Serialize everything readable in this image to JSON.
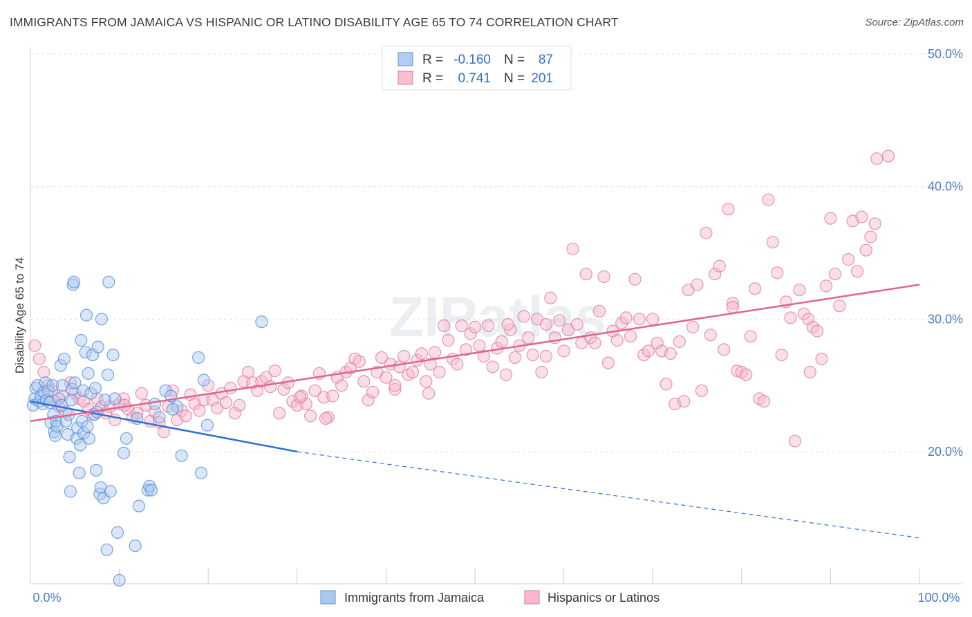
{
  "title": "IMMIGRANTS FROM JAMAICA VS HISPANIC OR LATINO DISABILITY AGE 65 TO 74 CORRELATION CHART",
  "source": "Source: ZipAtlas.com",
  "legend": {
    "rows": [
      {
        "r_label": "R =",
        "r_value": "-0.160",
        "n_label": "N =",
        "n_value": "87",
        "color": "#a9c8f0",
        "stroke": "#5b8fd6"
      },
      {
        "r_label": "R =",
        "r_value": "0.741",
        "n_label": "N =",
        "n_value": "201",
        "color": "#f7b8cb",
        "stroke": "#e07aa0"
      }
    ]
  },
  "bottom_legend": [
    {
      "label": "Immigrants from Jamaica",
      "color": "#a9c8f0",
      "stroke": "#5b8fd6"
    },
    {
      "label": "Hispanics or Latinos",
      "color": "#f7b8cb",
      "stroke": "#e07aa0"
    }
  ],
  "watermark": "ZIPatlas",
  "chart_data": {
    "type": "scatter",
    "title": "IMMIGRANTS FROM JAMAICA VS HISPANIC OR LATINO DISABILITY AGE 65 TO 74 CORRELATION CHART",
    "xlabel": "",
    "ylabel": "Disability Age 65 to 74",
    "xlim": [
      0,
      100
    ],
    "ylim": [
      10,
      51.5
    ],
    "x_tick_labels": [
      "0.0%",
      "100.0%"
    ],
    "y_ticks": [
      20,
      30,
      40,
      50
    ],
    "y_tick_labels": [
      "20.0%",
      "30.0%",
      "40.0%",
      "50.0%"
    ],
    "grid": true,
    "series": [
      {
        "name": "Immigrants from Jamaica",
        "color": "#a9c8f0",
        "stroke": "#5b8fd6",
        "trend": {
          "x0": 0,
          "y0": 23.8,
          "x1": 30,
          "y1": 20.0,
          "dash_to": 100,
          "dash_y": 13.5,
          "color": "#2d6fd1"
        },
        "points": [
          [
            0.3,
            23.5
          ],
          [
            0.5,
            24.0
          ],
          [
            0.6,
            24.8
          ],
          [
            0.8,
            25.0
          ],
          [
            1.0,
            23.8
          ],
          [
            1.2,
            24.2
          ],
          [
            1.4,
            23.6
          ],
          [
            1.5,
            24.5
          ],
          [
            1.7,
            25.2
          ],
          [
            1.8,
            23.9
          ],
          [
            2.0,
            24.6
          ],
          [
            2.2,
            23.7
          ],
          [
            2.3,
            22.2
          ],
          [
            2.5,
            25.0
          ],
          [
            2.6,
            22.8
          ],
          [
            2.7,
            21.5
          ],
          [
            2.8,
            21.2
          ],
          [
            2.9,
            22.3
          ],
          [
            3.0,
            21.9
          ],
          [
            3.2,
            24.0
          ],
          [
            3.4,
            26.5
          ],
          [
            3.5,
            23.5
          ],
          [
            3.6,
            25.0
          ],
          [
            3.8,
            27.0
          ],
          [
            4.0,
            22.3
          ],
          [
            4.2,
            21.3
          ],
          [
            4.3,
            22.8
          ],
          [
            4.4,
            19.6
          ],
          [
            4.5,
            17.0
          ],
          [
            4.6,
            23.9
          ],
          [
            4.7,
            24.7
          ],
          [
            4.8,
            32.6
          ],
          [
            4.9,
            32.8
          ],
          [
            5.0,
            25.2
          ],
          [
            5.2,
            21.0
          ],
          [
            5.3,
            21.8
          ],
          [
            5.5,
            18.4
          ],
          [
            5.6,
            20.5
          ],
          [
            5.7,
            28.4
          ],
          [
            5.8,
            22.3
          ],
          [
            5.9,
            24.6
          ],
          [
            6.0,
            21.4
          ],
          [
            6.2,
            27.5
          ],
          [
            6.3,
            30.3
          ],
          [
            6.4,
            21.9
          ],
          [
            6.5,
            25.9
          ],
          [
            6.6,
            21.0
          ],
          [
            6.8,
            24.4
          ],
          [
            7.0,
            27.3
          ],
          [
            7.2,
            22.8
          ],
          [
            7.3,
            24.8
          ],
          [
            7.4,
            18.6
          ],
          [
            7.5,
            23.0
          ],
          [
            7.6,
            27.9
          ],
          [
            7.8,
            16.8
          ],
          [
            7.9,
            17.3
          ],
          [
            8.0,
            30.0
          ],
          [
            8.2,
            16.5
          ],
          [
            8.4,
            23.9
          ],
          [
            8.6,
            12.6
          ],
          [
            8.7,
            25.8
          ],
          [
            8.8,
            32.8
          ],
          [
            9.0,
            17.0
          ],
          [
            9.3,
            27.3
          ],
          [
            9.5,
            24.0
          ],
          [
            9.8,
            13.9
          ],
          [
            10.0,
            10.3
          ],
          [
            10.5,
            19.9
          ],
          [
            10.8,
            21.0
          ],
          [
            11.8,
            12.9
          ],
          [
            12.0,
            22.5
          ],
          [
            12.2,
            15.9
          ],
          [
            13.2,
            17.1
          ],
          [
            13.4,
            17.4
          ],
          [
            13.6,
            17.1
          ],
          [
            14.0,
            23.6
          ],
          [
            14.5,
            22.6
          ],
          [
            15.2,
            24.6
          ],
          [
            15.8,
            24.2
          ],
          [
            16.5,
            23.4
          ],
          [
            17.0,
            19.7
          ],
          [
            18.9,
            27.1
          ],
          [
            19.2,
            18.4
          ],
          [
            19.5,
            25.4
          ],
          [
            19.9,
            22.0
          ],
          [
            26.0,
            29.8
          ],
          [
            16.0,
            23.2
          ]
        ]
      },
      {
        "name": "Hispanics or Latinos",
        "color": "#f7b8cb",
        "stroke": "#e07aa0",
        "trend": {
          "x0": 0,
          "y0": 22.3,
          "x1": 100,
          "y1": 32.6,
          "color": "#e0648f"
        },
        "points": [
          [
            0.5,
            28.0
          ],
          [
            1.0,
            27.0
          ],
          [
            1.5,
            26.0
          ],
          [
            2.0,
            25.0
          ],
          [
            2.4,
            24.6
          ],
          [
            2.8,
            23.8
          ],
          [
            3.2,
            23.4
          ],
          [
            3.6,
            24.2
          ],
          [
            4.0,
            23.0
          ],
          [
            4.5,
            25.2
          ],
          [
            5.0,
            24.4
          ],
          [
            5.5,
            24.0
          ],
          [
            6.0,
            23.8
          ],
          [
            6.5,
            23.2
          ],
          [
            7.0,
            22.8
          ],
          [
            7.5,
            24.0
          ],
          [
            8.0,
            23.4
          ],
          [
            8.5,
            22.9
          ],
          [
            9.0,
            23.4
          ],
          [
            9.5,
            22.4
          ],
          [
            10.0,
            23.6
          ],
          [
            10.5,
            24.0
          ],
          [
            11.0,
            23.2
          ],
          [
            11.5,
            22.6
          ],
          [
            12.0,
            22.9
          ],
          [
            12.5,
            24.4
          ],
          [
            13.0,
            23.5
          ],
          [
            13.5,
            22.3
          ],
          [
            14.0,
            23.0
          ],
          [
            14.5,
            22.2
          ],
          [
            15.0,
            21.5
          ],
          [
            15.5,
            23.4
          ],
          [
            16.0,
            24.6
          ],
          [
            16.5,
            22.4
          ],
          [
            17.0,
            23.1
          ],
          [
            17.5,
            22.7
          ],
          [
            18.0,
            24.3
          ],
          [
            18.5,
            23.6
          ],
          [
            19.0,
            23.1
          ],
          [
            19.5,
            23.9
          ],
          [
            20.0,
            25.0
          ],
          [
            20.5,
            23.9
          ],
          [
            21.0,
            23.3
          ],
          [
            21.5,
            24.4
          ],
          [
            22.0,
            23.7
          ],
          [
            22.5,
            24.8
          ],
          [
            23.0,
            22.9
          ],
          [
            23.5,
            23.5
          ],
          [
            24.0,
            25.3
          ],
          [
            24.5,
            26.0
          ],
          [
            25.0,
            25.2
          ],
          [
            25.5,
            24.6
          ],
          [
            26.0,
            25.3
          ],
          [
            26.5,
            25.6
          ],
          [
            27.0,
            24.9
          ],
          [
            27.5,
            26.1
          ],
          [
            28.0,
            22.9
          ],
          [
            28.5,
            24.7
          ],
          [
            29.0,
            25.2
          ],
          [
            29.5,
            23.8
          ],
          [
            30.0,
            23.5
          ],
          [
            30.5,
            24.2
          ],
          [
            31.0,
            23.6
          ],
          [
            31.5,
            22.7
          ],
          [
            32.0,
            24.6
          ],
          [
            32.5,
            25.9
          ],
          [
            33.0,
            24.1
          ],
          [
            33.5,
            22.6
          ],
          [
            34.0,
            24.2
          ],
          [
            34.5,
            25.6
          ],
          [
            35.0,
            25.0
          ],
          [
            35.5,
            26.0
          ],
          [
            36.0,
            26.3
          ],
          [
            36.5,
            27.0
          ],
          [
            37.0,
            26.8
          ],
          [
            37.5,
            25.3
          ],
          [
            38.0,
            23.9
          ],
          [
            38.5,
            24.5
          ],
          [
            39.0,
            26.0
          ],
          [
            39.5,
            27.1
          ],
          [
            40.0,
            25.6
          ],
          [
            40.5,
            26.6
          ],
          [
            41.0,
            24.7
          ],
          [
            41.5,
            26.4
          ],
          [
            42.0,
            27.2
          ],
          [
            42.5,
            25.8
          ],
          [
            43.0,
            26.0
          ],
          [
            43.5,
            26.9
          ],
          [
            44.0,
            27.4
          ],
          [
            44.5,
            25.3
          ],
          [
            45.0,
            26.6
          ],
          [
            45.5,
            27.5
          ],
          [
            46.0,
            26.0
          ],
          [
            46.5,
            29.5
          ],
          [
            47.0,
            28.4
          ],
          [
            47.5,
            27.0
          ],
          [
            48.0,
            26.6
          ],
          [
            48.5,
            29.5
          ],
          [
            49.0,
            27.7
          ],
          [
            49.5,
            28.9
          ],
          [
            50.0,
            29.4
          ],
          [
            50.5,
            28.0
          ],
          [
            51.0,
            27.2
          ],
          [
            51.5,
            29.5
          ],
          [
            52.0,
            26.4
          ],
          [
            52.5,
            27.8
          ],
          [
            53.0,
            28.3
          ],
          [
            53.5,
            25.8
          ],
          [
            54.0,
            29.2
          ],
          [
            54.5,
            27.1
          ],
          [
            55.0,
            28.0
          ],
          [
            55.5,
            30.2
          ],
          [
            56.0,
            28.6
          ],
          [
            56.5,
            27.3
          ],
          [
            57.0,
            30.0
          ],
          [
            57.5,
            26.0
          ],
          [
            58.0,
            29.6
          ],
          [
            58.5,
            31.6
          ],
          [
            59.0,
            28.6
          ],
          [
            59.5,
            29.9
          ],
          [
            60.0,
            27.6
          ],
          [
            60.5,
            29.2
          ],
          [
            61.0,
            35.3
          ],
          [
            61.5,
            29.6
          ],
          [
            62.0,
            28.2
          ],
          [
            62.5,
            33.4
          ],
          [
            63.0,
            28.6
          ],
          [
            63.5,
            28.2
          ],
          [
            64.0,
            30.6
          ],
          [
            64.5,
            33.2
          ],
          [
            65.0,
            26.7
          ],
          [
            65.5,
            29.1
          ],
          [
            66.0,
            28.4
          ],
          [
            66.5,
            29.7
          ],
          [
            67.0,
            30.1
          ],
          [
            67.5,
            28.7
          ],
          [
            68.0,
            33.0
          ],
          [
            68.5,
            30.0
          ],
          [
            69.0,
            27.3
          ],
          [
            69.5,
            27.6
          ],
          [
            70.0,
            30.0
          ],
          [
            70.5,
            28.2
          ],
          [
            71.0,
            27.6
          ],
          [
            71.5,
            25.1
          ],
          [
            72.0,
            27.4
          ],
          [
            72.5,
            23.6
          ],
          [
            73.0,
            28.3
          ],
          [
            73.5,
            23.8
          ],
          [
            74.0,
            32.2
          ],
          [
            74.5,
            29.4
          ],
          [
            75.0,
            32.6
          ],
          [
            75.5,
            24.6
          ],
          [
            76.0,
            36.5
          ],
          [
            76.5,
            28.8
          ],
          [
            77.0,
            33.4
          ],
          [
            77.5,
            34.0
          ],
          [
            78.0,
            27.7
          ],
          [
            78.5,
            38.3
          ],
          [
            79.0,
            31.2
          ],
          [
            79.5,
            26.1
          ],
          [
            80.0,
            26.0
          ],
          [
            80.5,
            25.8
          ],
          [
            81.0,
            28.7
          ],
          [
            81.5,
            32.3
          ],
          [
            82.0,
            24.0
          ],
          [
            82.5,
            23.8
          ],
          [
            83.0,
            39.0
          ],
          [
            83.5,
            35.8
          ],
          [
            84.0,
            33.5
          ],
          [
            84.5,
            27.3
          ],
          [
            85.0,
            31.3
          ],
          [
            85.5,
            30.1
          ],
          [
            86.0,
            20.8
          ],
          [
            86.5,
            32.2
          ],
          [
            87.0,
            30.4
          ],
          [
            87.5,
            30.0
          ],
          [
            88.0,
            29.4
          ],
          [
            88.5,
            29.1
          ],
          [
            89.0,
            27.0
          ],
          [
            89.5,
            32.5
          ],
          [
            90.0,
            37.6
          ],
          [
            90.5,
            33.4
          ],
          [
            91.0,
            31.0
          ],
          [
            92.0,
            34.5
          ],
          [
            92.5,
            37.4
          ],
          [
            93.0,
            33.6
          ],
          [
            93.5,
            37.7
          ],
          [
            94.0,
            35.2
          ],
          [
            94.5,
            36.2
          ],
          [
            95.0,
            37.2
          ],
          [
            95.2,
            42.1
          ],
          [
            96.5,
            42.3
          ],
          [
            53.7,
            29.6
          ],
          [
            33.2,
            22.5
          ],
          [
            87.7,
            26.0
          ],
          [
            44.8,
            24.4
          ],
          [
            79.0,
            30.9
          ],
          [
            58.0,
            27.2
          ],
          [
            41.0,
            25.0
          ],
          [
            10.6,
            23.5
          ],
          [
            30.3,
            24.1
          ]
        ]
      }
    ]
  }
}
